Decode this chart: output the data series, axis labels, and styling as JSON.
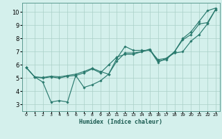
{
  "xlabel": "Humidex (Indice chaleur)",
  "ylabel": "",
  "bg_color": "#d4f0ec",
  "grid_color": "#aad0c8",
  "line_color": "#2a7a6e",
  "xlim": [
    -0.5,
    23.5
  ],
  "ylim": [
    2.5,
    10.7
  ],
  "xticks": [
    0,
    1,
    2,
    3,
    4,
    5,
    6,
    7,
    8,
    9,
    10,
    11,
    12,
    13,
    14,
    15,
    16,
    17,
    18,
    19,
    20,
    21,
    22,
    23
  ],
  "yticks": [
    3,
    4,
    5,
    6,
    7,
    8,
    9,
    10
  ],
  "lines": [
    {
      "x": [
        0,
        1,
        2,
        3,
        4,
        5,
        6,
        7,
        8,
        9,
        10,
        11,
        12,
        13,
        14,
        15,
        16,
        17,
        18,
        19,
        20,
        21,
        22,
        23
      ],
      "y": [
        5.8,
        5.1,
        4.7,
        3.2,
        3.3,
        3.2,
        5.2,
        4.3,
        4.5,
        4.8,
        5.3,
        6.5,
        7.4,
        7.1,
        7.1,
        7.1,
        6.4,
        6.5,
        7.0,
        8.0,
        8.5,
        9.3,
        10.1,
        10.3
      ]
    },
    {
      "x": [
        0,
        1,
        2,
        3,
        4,
        5,
        6,
        7,
        8,
        9,
        10,
        11,
        12,
        13,
        14,
        15,
        16,
        17,
        18,
        19,
        20,
        21,
        22,
        23
      ],
      "y": [
        5.8,
        5.1,
        5.0,
        5.1,
        5.0,
        5.15,
        5.2,
        5.4,
        5.7,
        5.4,
        6.0,
        6.6,
        6.8,
        6.8,
        7.0,
        7.15,
        6.2,
        6.5,
        6.9,
        7.0,
        7.8,
        8.3,
        9.1,
        10.2
      ]
    },
    {
      "x": [
        0,
        1,
        2,
        3,
        4,
        5,
        6,
        7,
        8,
        9,
        10,
        11,
        12,
        13,
        14,
        15,
        16,
        17,
        18,
        19,
        20,
        21,
        22,
        23
      ],
      "y": [
        5.8,
        5.1,
        5.05,
        5.15,
        5.1,
        5.2,
        5.3,
        5.5,
        5.75,
        5.5,
        5.3,
        6.3,
        6.9,
        6.9,
        7.0,
        7.2,
        6.3,
        6.4,
        7.0,
        7.9,
        8.3,
        9.1,
        9.2,
        10.2
      ]
    }
  ]
}
